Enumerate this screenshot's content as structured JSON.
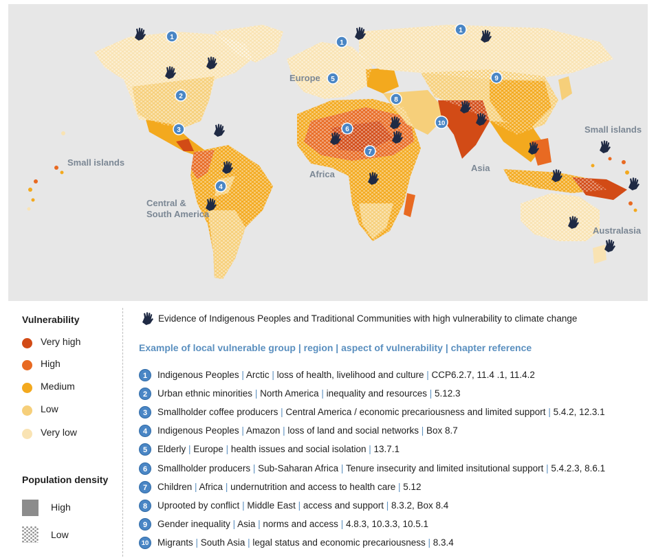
{
  "map": {
    "region_labels": {
      "small_islands_west": "Small islands",
      "small_islands_east": "Small islands",
      "europe": "Europe",
      "africa": "Africa",
      "asia": "Asia",
      "central_south_america_line1": "Central &",
      "central_south_america_line2": "South America",
      "australasia": "Australasia"
    },
    "markers": [
      "1",
      "1",
      "1",
      "2",
      "3",
      "4",
      "5",
      "6",
      "7",
      "8",
      "9",
      "10"
    ],
    "hand_icon_count": 20
  },
  "legend": {
    "vulnerability": {
      "title": "Vulnerability",
      "items": [
        {
          "label": "Very high",
          "color": "#d24b16"
        },
        {
          "label": "High",
          "color": "#e86a22"
        },
        {
          "label": "Medium",
          "color": "#f3a91e"
        },
        {
          "label": "Low",
          "color": "#f6cf7a"
        },
        {
          "label": "Very low",
          "color": "#f9e3b3"
        }
      ]
    },
    "population_density": {
      "title": "Population density",
      "items": [
        {
          "label": "High",
          "pattern": "solid"
        },
        {
          "label": "Low",
          "pattern": "hexagonal-dots"
        }
      ]
    },
    "hand_icon_text": "Evidence of Indigenous Peoples and Traditional Communities with high vulnerability to climate change",
    "example_header": "Example of local vulnerable group | region | aspect of vulnerability | chapter reference",
    "examples": [
      {
        "num": "1",
        "group": "Indigenous Peoples",
        "region": "Arctic",
        "aspect": "loss of health, livelihood and culture",
        "ref": "CCP6.2.7, 11.4 .1, 11.4.2"
      },
      {
        "num": "2",
        "group": "Urban ethnic minorities",
        "region": "North America",
        "aspect": "inequality and resources",
        "ref": "5.12.3"
      },
      {
        "num": "3",
        "group": "Smallholder coffee producers",
        "region": "Central America / economic precariousness and limited support",
        "aspect": "",
        "ref": "5.4.2, 12.3.1"
      },
      {
        "num": "4",
        "group": "Indigenous Peoples",
        "region": "Amazon",
        "aspect": "loss of land and social networks",
        "ref": "Box 8.7"
      },
      {
        "num": "5",
        "group": "Elderly",
        "region": "Europe",
        "aspect": "health issues and social isolation",
        "ref": "13.7.1"
      },
      {
        "num": "6",
        "group": "Smallholder producers",
        "region": "Sub-Saharan Africa",
        "aspect": "Tenure insecurity and limited insitutional support",
        "ref": "5.4.2.3, 8.6.1"
      },
      {
        "num": "7",
        "group": "Children",
        "region": "Africa",
        "aspect": "undernutrition and access to health care",
        "ref": "5.12"
      },
      {
        "num": "8",
        "group": "Uprooted by conflict",
        "region": "Middle East",
        "aspect": "access and support",
        "ref": "8.3.2, Box 8.4"
      },
      {
        "num": "9",
        "group": "Gender inequality",
        "region": "Asia",
        "aspect": "norms and access",
        "ref": "4.8.3, 10.3.3, 10.5.1"
      },
      {
        "num": "10",
        "group": "Migrants",
        "region": "South Asia",
        "aspect": "legal status and economic precariousness",
        "ref": "8.3.4"
      }
    ]
  }
}
